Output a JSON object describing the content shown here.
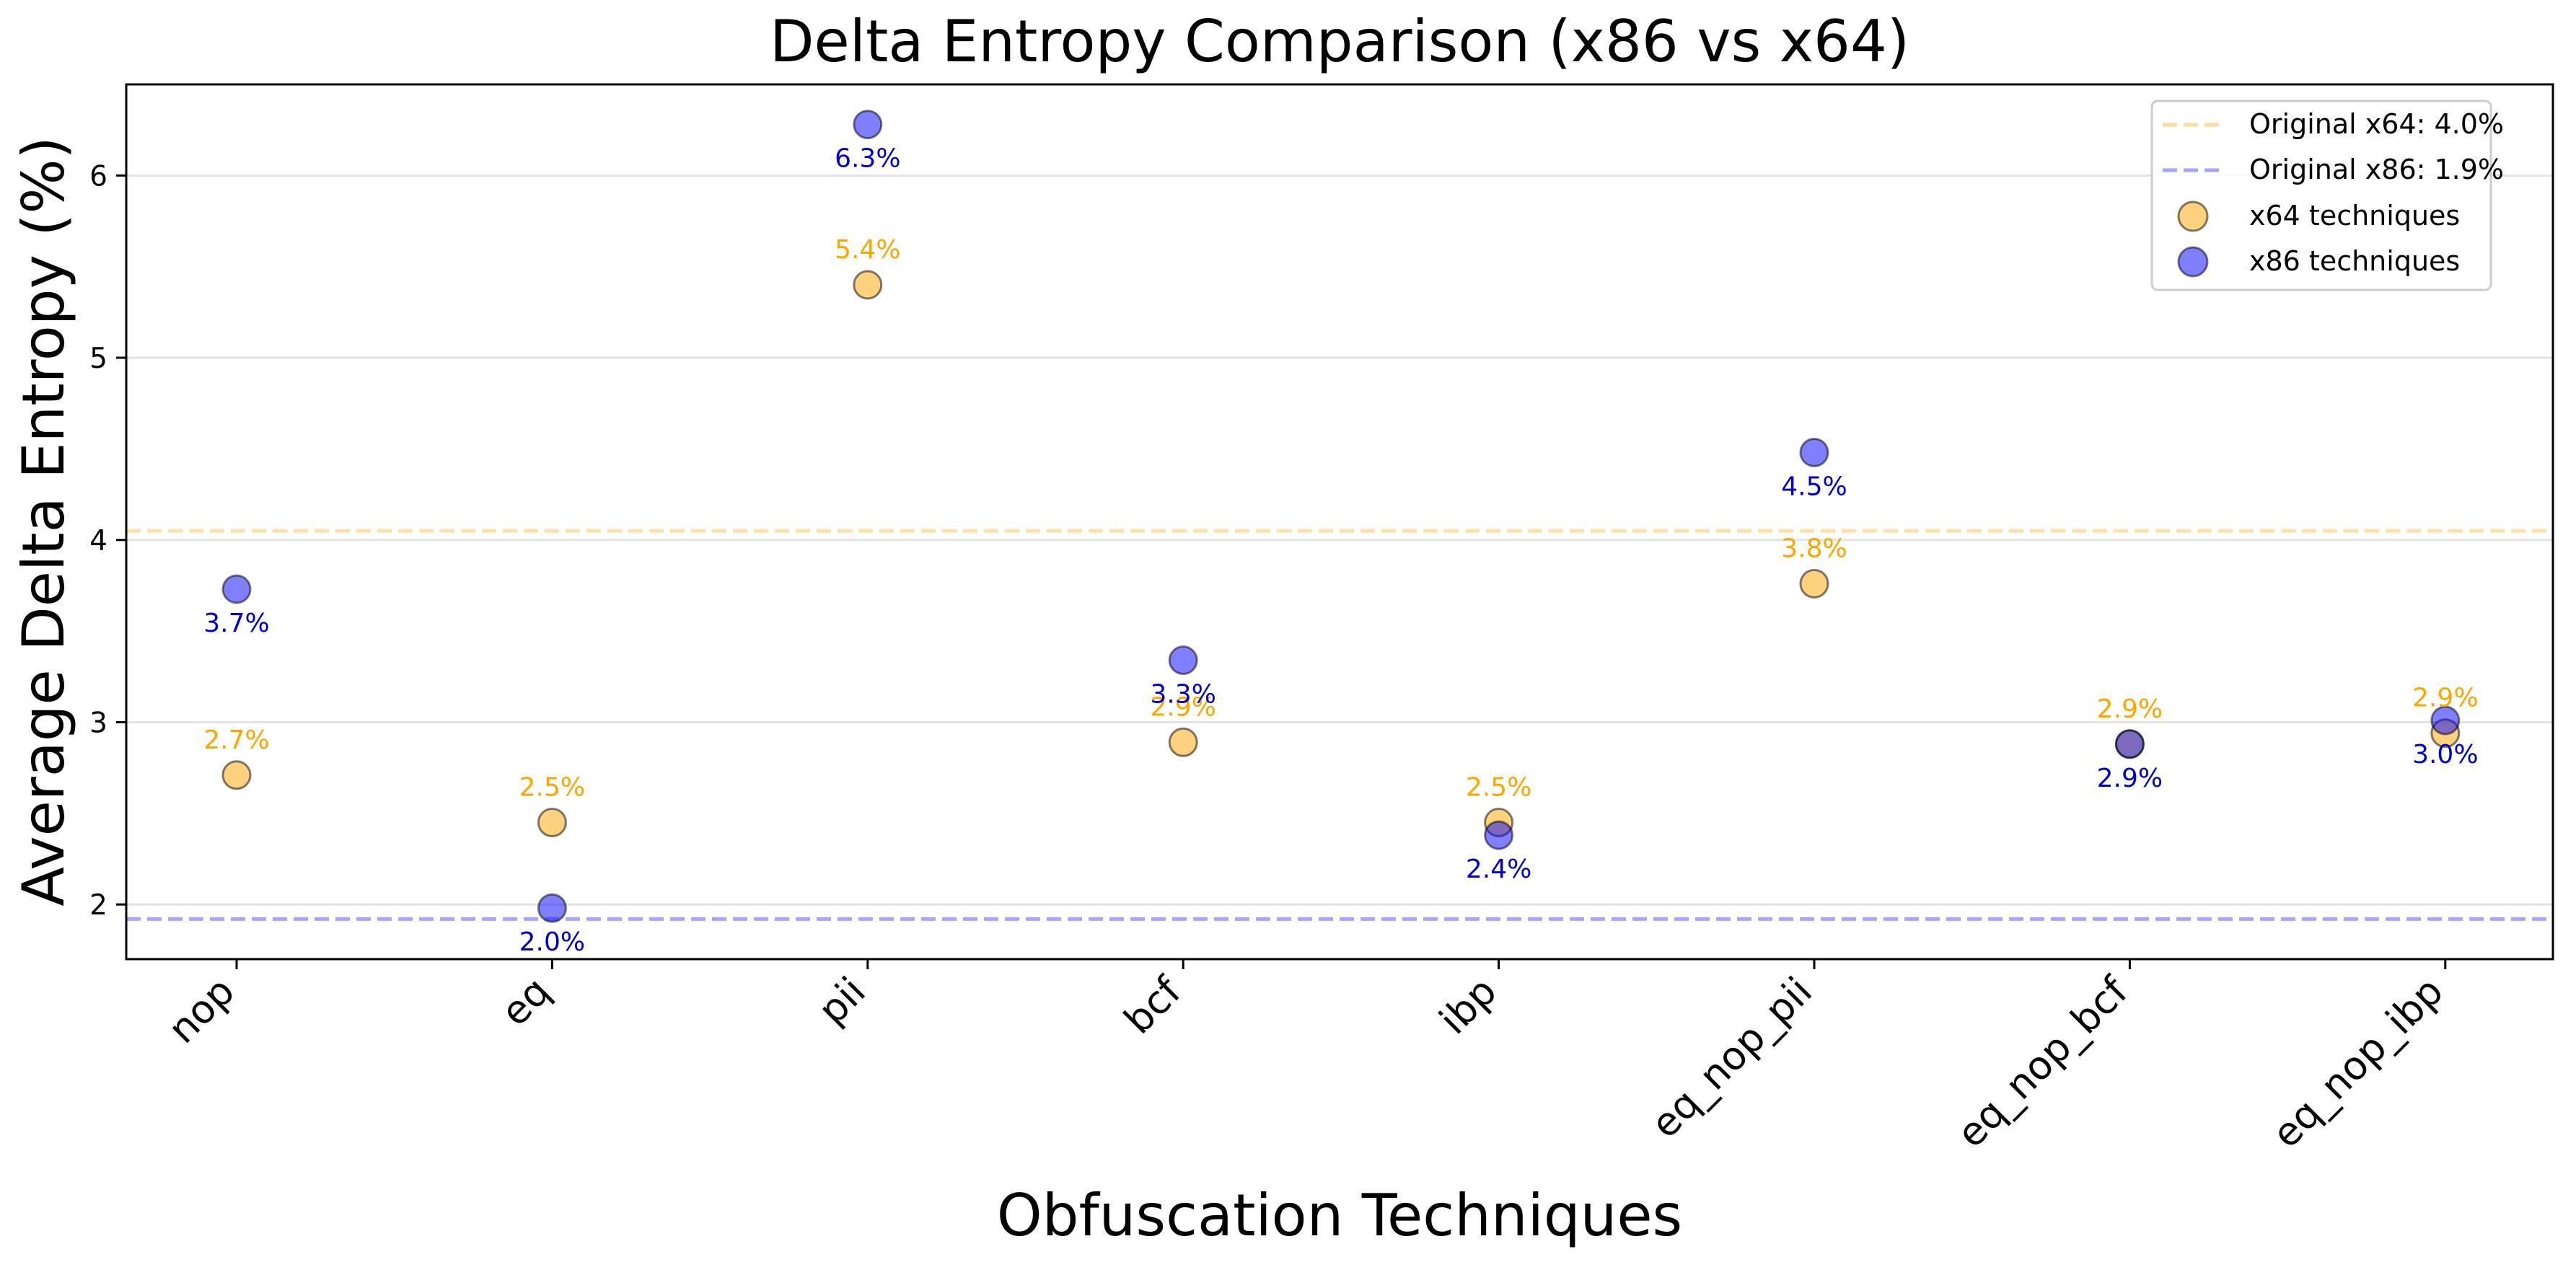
{
  "chart_data": {
    "type": "scatter",
    "title": "Delta Entropy Comparison (x86 vs x64)",
    "xlabel": "Obfuscation Techniques",
    "ylabel": "Average Delta Entropy (%)",
    "categories": [
      "nop",
      "eq",
      "pii",
      "bcf",
      "ibp",
      "eq_nop_pii",
      "eq_nop_bcf",
      "eq_nop_ibp"
    ],
    "ylim": [
      1.7,
      6.5
    ],
    "yticks": [
      2,
      3,
      4,
      5,
      6
    ],
    "grid": "horizontal",
    "legend_position": "top-right",
    "series": [
      {
        "name": "x64 techniques",
        "color": "#FFA500",
        "values": [
          2.71,
          2.45,
          5.4,
          2.89,
          2.45,
          3.76,
          2.88,
          2.94
        ],
        "labels": [
          "2.7%",
          "2.5%",
          "5.4%",
          "2.9%",
          "2.5%",
          "3.8%",
          "2.9%",
          "2.9%"
        ],
        "label_position": "above"
      },
      {
        "name": "x86 techniques",
        "color": "#0000FF",
        "values": [
          3.73,
          1.98,
          6.28,
          3.34,
          2.38,
          4.48,
          2.88,
          3.01
        ],
        "labels": [
          "3.7%",
          "2.0%",
          "6.3%",
          "3.3%",
          "2.4%",
          "4.5%",
          "2.9%",
          "3.0%"
        ],
        "label_position": "below"
      }
    ],
    "reference_lines": [
      {
        "name": "Original x64: 4.0%",
        "value": 4.05,
        "color": "#FFA500"
      },
      {
        "name": "Original x86: 1.9%",
        "value": 1.92,
        "color": "#0000FF"
      }
    ]
  }
}
